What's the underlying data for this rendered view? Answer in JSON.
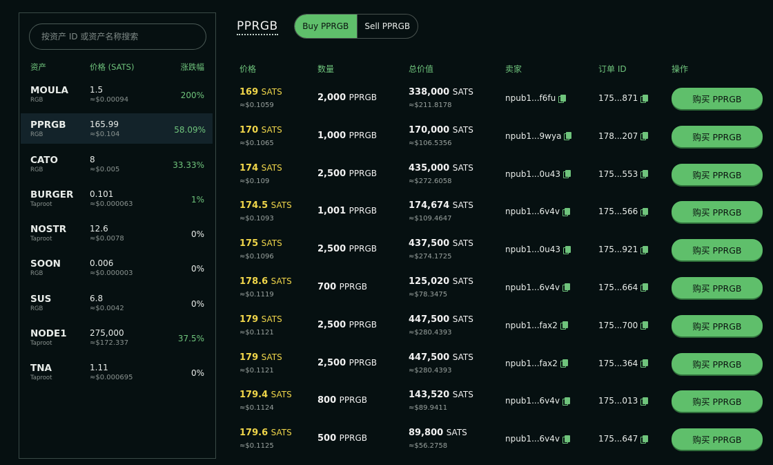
{
  "sidebar": {
    "search_placeholder": "按资产 ID 或资产名称搜索",
    "headers": {
      "asset": "资产",
      "price": "价格 (SATS)",
      "change": "涨跌幅"
    },
    "assets": [
      {
        "name": "MOULA",
        "protocol": "RGB",
        "price": "1.5",
        "usd": "≈$0.00094",
        "change": "200%",
        "trend": "up"
      },
      {
        "name": "PPRGB",
        "protocol": "RGB",
        "price": "165.99",
        "usd": "≈$0.104",
        "change": "58.09%",
        "trend": "up",
        "active": true
      },
      {
        "name": "CATO",
        "protocol": "RGB",
        "price": "8",
        "usd": "≈$0.005",
        "change": "33.33%",
        "trend": "up"
      },
      {
        "name": "BURGER",
        "protocol": "Taproot",
        "price": "0.101",
        "usd": "≈$0.000063",
        "change": "1%",
        "trend": "up"
      },
      {
        "name": "NOSTR",
        "protocol": "Taproot",
        "price": "12.6",
        "usd": "≈$0.0078",
        "change": "0%",
        "trend": "flat"
      },
      {
        "name": "SOON",
        "protocol": "RGB",
        "price": "0.006",
        "usd": "≈$0.000003",
        "change": "0%",
        "trend": "flat"
      },
      {
        "name": "SUS",
        "protocol": "RGB",
        "price": "6.8",
        "usd": "≈$0.0042",
        "change": "0%",
        "trend": "flat"
      },
      {
        "name": "NODE1",
        "protocol": "Taproot",
        "price": "275,000",
        "usd": "≈$172.337",
        "change": "37.5%",
        "trend": "up"
      },
      {
        "name": "TNA",
        "protocol": "Taproot",
        "price": "1.11",
        "usd": "≈$0.000695",
        "change": "0%",
        "trend": "flat"
      }
    ]
  },
  "main": {
    "title": "PPRGB",
    "buy_tab": "Buy PPRGB",
    "sell_tab": "Sell PPRGB",
    "columns": {
      "price": "价格",
      "quantity": "数量",
      "total": "总价值",
      "seller": "卖家",
      "order_id": "订单 ID",
      "action": "操作"
    },
    "price_unit": "SATS",
    "quantity_unit": "PPRGB",
    "buy_label": "购买 PPRGB",
    "orders": [
      {
        "price": "169",
        "price_usd": "≈$0.1059",
        "qty": "2,000",
        "total": "338,000",
        "total_usd": "≈$211.8178",
        "seller": "npub1...f6fu",
        "order_id": "175...871"
      },
      {
        "price": "170",
        "price_usd": "≈$0.1065",
        "qty": "1,000",
        "total": "170,000",
        "total_usd": "≈$106.5356",
        "seller": "npub1...9wya",
        "order_id": "178...207"
      },
      {
        "price": "174",
        "price_usd": "≈$0.109",
        "qty": "2,500",
        "total": "435,000",
        "total_usd": "≈$272.6058",
        "seller": "npub1...0u43",
        "order_id": "175...553"
      },
      {
        "price": "174.5",
        "price_usd": "≈$0.1093",
        "qty": "1,001",
        "total": "174,674",
        "total_usd": "≈$109.4647",
        "seller": "npub1...6v4v",
        "order_id": "175...566"
      },
      {
        "price": "175",
        "price_usd": "≈$0.1096",
        "qty": "2,500",
        "total": "437,500",
        "total_usd": "≈$274.1725",
        "seller": "npub1...0u43",
        "order_id": "175...921"
      },
      {
        "price": "178.6",
        "price_usd": "≈$0.1119",
        "qty": "700",
        "total": "125,020",
        "total_usd": "≈$78.3475",
        "seller": "npub1...6v4v",
        "order_id": "175...664"
      },
      {
        "price": "179",
        "price_usd": "≈$0.1121",
        "qty": "2,500",
        "total": "447,500",
        "total_usd": "≈$280.4393",
        "seller": "npub1...fax2",
        "order_id": "175...700"
      },
      {
        "price": "179",
        "price_usd": "≈$0.1121",
        "qty": "2,500",
        "total": "447,500",
        "total_usd": "≈$280.4393",
        "seller": "npub1...fax2",
        "order_id": "175...364"
      },
      {
        "price": "179.4",
        "price_usd": "≈$0.1124",
        "qty": "800",
        "total": "143,520",
        "total_usd": "≈$89.9411",
        "seller": "npub1...6v4v",
        "order_id": "175...013"
      },
      {
        "price": "179.6",
        "price_usd": "≈$0.1125",
        "qty": "500",
        "total": "89,800",
        "total_usd": "≈$56.2758",
        "seller": "npub1...6v4v",
        "order_id": "175...647"
      }
    ]
  }
}
